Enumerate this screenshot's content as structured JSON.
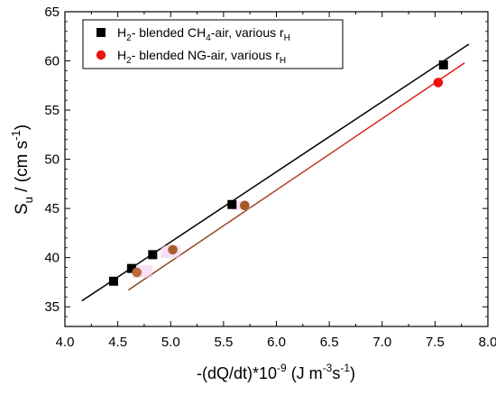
{
  "chart_data": {
    "type": "scatter",
    "title": "",
    "xlabel": {
      "main": "-(dQ/dt)*10",
      "exp": "-9",
      "unit_open": " (J m",
      "unit_exp1": "-3",
      "unit_mid": "s",
      "unit_exp2": "-1",
      "unit_close": ")"
    },
    "ylabel": {
      "main": "S",
      "sub": "u",
      "unit_open": " / (cm s",
      "unit_exp": "-1",
      "unit_close": ")"
    },
    "xlim": [
      4.0,
      8.0
    ],
    "ylim": [
      33,
      65
    ],
    "x_ticks": [
      "4.0",
      "4.5",
      "5.0",
      "5.5",
      "6.0",
      "6.5",
      "7.0",
      "7.5",
      "8.0"
    ],
    "x_tick_values": [
      4.0,
      4.5,
      5.0,
      5.5,
      6.0,
      6.5,
      7.0,
      7.5,
      8.0
    ],
    "y_ticks": [
      "35",
      "40",
      "45",
      "50",
      "55",
      "60",
      "65"
    ],
    "y_tick_values": [
      35,
      40,
      45,
      50,
      55,
      60,
      65
    ],
    "grid": false,
    "legend_position": "top-left",
    "series": [
      {
        "label": {
          "a": "H",
          "a_sub": "2",
          "b": "- blended CH",
          "b_sub": "4",
          "c": "-air, various r",
          "c_sub": "H"
        },
        "marker": "square",
        "color": "#000000",
        "points": [
          {
            "x": 4.46,
            "y": 37.6
          },
          {
            "x": 4.63,
            "y": 38.9
          },
          {
            "x": 4.83,
            "y": 40.3
          },
          {
            "x": 5.58,
            "y": 45.4
          },
          {
            "x": 7.58,
            "y": 59.6
          }
        ],
        "fit": [
          [
            4.16,
            35.6
          ],
          [
            7.82,
            61.7
          ]
        ]
      },
      {
        "label": {
          "a": "H",
          "a_sub": "2",
          "b": "- blended NG-air, various r",
          "b_sub": "H",
          "c": "",
          "c_sub": ""
        },
        "marker": "circle",
        "color": "#ee1111",
        "points": [
          {
            "x": 4.68,
            "y": 38.5,
            "fill": "#b86a3a"
          },
          {
            "x": 5.02,
            "y": 40.8,
            "fill": "#a7612e"
          },
          {
            "x": 5.7,
            "y": 45.3,
            "fill": "#a55a2a"
          },
          {
            "x": 7.53,
            "y": 57.8,
            "fill": "#ee1111"
          }
        ],
        "fit": [
          [
            4.6,
            36.7
          ],
          [
            7.78,
            59.8
          ]
        ],
        "fit_color_start": "#7a4a1c",
        "fit_color_end": "#ee1111"
      }
    ]
  }
}
